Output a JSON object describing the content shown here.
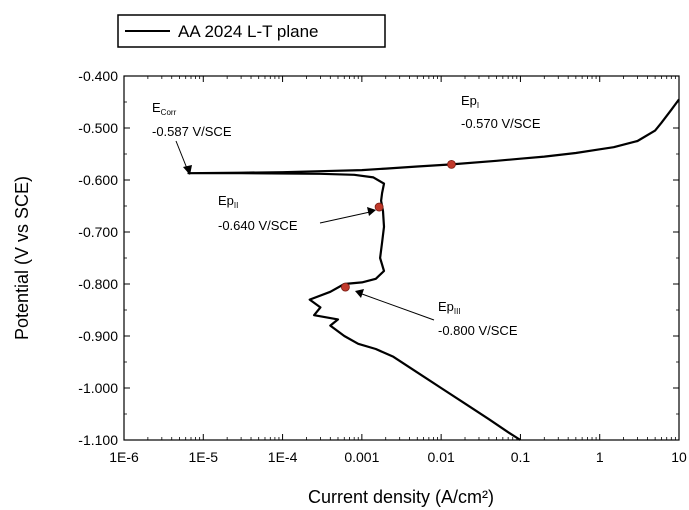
{
  "chart_data": {
    "type": "line",
    "title": "",
    "xlabel": "Current density (A/cm²)",
    "ylabel": "Potential (V vs SCE)",
    "x_scale": "log",
    "xlim": [
      1e-06,
      10
    ],
    "ylim": [
      -1.1,
      -0.4
    ],
    "x_tick_labels": [
      "1E-6",
      "1E-5",
      "1E-4",
      "0.001",
      "0.01",
      "0.1",
      "1",
      "10"
    ],
    "y_tick_labels": [
      "-0.400",
      "-0.500",
      "-0.600",
      "-0.700",
      "-0.800",
      "-0.900",
      "-1.000",
      "-1.100"
    ],
    "y_ticks": [
      -0.4,
      -0.5,
      -0.6,
      -0.7,
      -0.8,
      -0.9,
      -1.0,
      -1.1
    ],
    "x_ticks": [
      1e-06,
      1e-05,
      0.0001,
      0.001,
      0.01,
      0.1,
      1,
      10
    ],
    "grid": false,
    "legend": {
      "position": "top-left",
      "entries": [
        "AA 2024 L-T plane"
      ]
    },
    "series": [
      {
        "name": "AA 2024 L-T plane",
        "color": "#000000",
        "points": [
          [
            10,
            -0.445
          ],
          [
            8,
            -0.465
          ],
          [
            6,
            -0.49
          ],
          [
            5,
            -0.505
          ],
          [
            3,
            -0.525
          ],
          [
            1.5,
            -0.537
          ],
          [
            1,
            -0.541
          ],
          [
            0.5,
            -0.548
          ],
          [
            0.2,
            -0.555
          ],
          [
            0.1,
            -0.559
          ],
          [
            0.05,
            -0.563
          ],
          [
            0.0135,
            -0.57
          ],
          [
            0.005,
            -0.574
          ],
          [
            0.002,
            -0.578
          ],
          [
            0.001,
            -0.581
          ],
          [
            0.0003,
            -0.583
          ],
          [
            0.0001,
            -0.585
          ],
          [
            3e-05,
            -0.586
          ],
          [
            6.5e-06,
            -0.587
          ],
          [
            3e-05,
            -0.587
          ],
          [
            0.0003,
            -0.588
          ],
          [
            0.0008,
            -0.59
          ],
          [
            0.0014,
            -0.595
          ],
          [
            0.0019,
            -0.607
          ],
          [
            0.0018,
            -0.625
          ],
          [
            0.00175,
            -0.64
          ],
          [
            0.00185,
            -0.66
          ],
          [
            0.0019,
            -0.69
          ],
          [
            0.0018,
            -0.72
          ],
          [
            0.0017,
            -0.75
          ],
          [
            0.0019,
            -0.775
          ],
          [
            0.0015,
            -0.79
          ],
          [
            0.001,
            -0.797
          ],
          [
            0.0006,
            -0.8
          ],
          [
            0.0004,
            -0.815
          ],
          [
            0.00022,
            -0.83
          ],
          [
            0.0003,
            -0.845
          ],
          [
            0.00025,
            -0.86
          ],
          [
            0.0005,
            -0.868
          ],
          [
            0.0004,
            -0.88
          ],
          [
            0.0006,
            -0.9
          ],
          [
            0.0009,
            -0.915
          ],
          [
            0.0015,
            -0.925
          ],
          [
            0.0025,
            -0.94
          ],
          [
            0.005,
            -0.97
          ],
          [
            0.01,
            -1.0
          ],
          [
            0.02,
            -1.03
          ],
          [
            0.04,
            -1.06
          ],
          [
            0.07,
            -1.085
          ],
          [
            0.1,
            -1.1
          ]
        ]
      }
    ],
    "markers": [
      {
        "x": 0.0135,
        "y": -0.57,
        "color": "#c0392b"
      },
      {
        "x": 0.00165,
        "y": -0.652,
        "color": "#c0392b"
      },
      {
        "x": 0.00062,
        "y": -0.806,
        "color": "#c0392b"
      }
    ],
    "annotations": [
      {
        "main": "E",
        "sub": "Corr",
        "value": "-0.587 V/SCE"
      },
      {
        "main": "Ep",
        "sub": "I",
        "value": "-0.570 V/SCE"
      },
      {
        "main": "Ep",
        "sub": "II",
        "value": "-0.640 V/SCE"
      },
      {
        "main": "Ep",
        "sub": "III",
        "value": "-0.800 V/SCE"
      }
    ]
  }
}
